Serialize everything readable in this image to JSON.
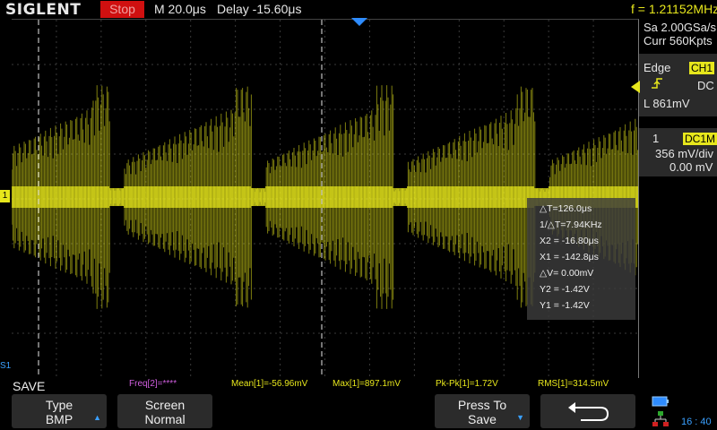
{
  "topbar": {
    "brand": "SIGLENT",
    "run_state": "Stop",
    "timebase": "M 20.0μs",
    "delay": "Delay -15.60μs",
    "frequency": "f = 1.21152MHz"
  },
  "acquisition": {
    "sample_rate": "Sa 2.00GSa/s",
    "memory": "Curr 560Kpts"
  },
  "trigger": {
    "type": "Edge",
    "source": "CH1",
    "coupling": "DC",
    "level": "L  861mV"
  },
  "channel": {
    "number": "1",
    "coupling_impedance": "DC1M",
    "scale": "356 mV/div",
    "offset": "0.00 mV",
    "marker_label": "1"
  },
  "cursors": {
    "delta_t": "△T=126.0μs",
    "inv_delta_t": "1/△T=7.94KHz",
    "x2": "X2 = -16.80μs",
    "x1": "X1 = -142.8μs",
    "delta_v": "△V= 0.00mV",
    "y2": "Y2 = -1.42V",
    "y1": "Y1 = -1.42V"
  },
  "measurements": {
    "save_label": "SAVE",
    "freq": "Freq[2]=****",
    "mean": "Mean[1]=-56.96mV",
    "max": "Max[1]=897.1mV",
    "pkpk": "Pk-Pk[1]=1.72V",
    "rms": "RMS[1]=314.5mV"
  },
  "softkeys": {
    "type_label": "Type",
    "type_value": "BMP",
    "screen_label": "Screen",
    "screen_value": "Normal",
    "press_label": "Press To",
    "press_value": "Save"
  },
  "status": {
    "clock": "16 : 40"
  },
  "colors": {
    "trace": "#e7e71c",
    "stop": "#d01010",
    "accent_blue": "#3aa0ff"
  }
}
